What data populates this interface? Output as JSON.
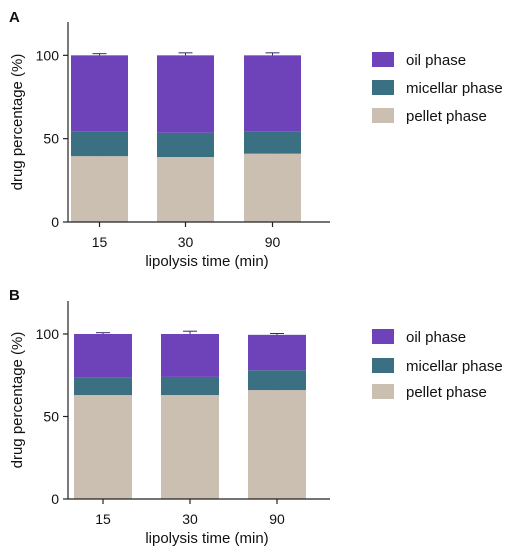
{
  "chart_data": [
    {
      "panel_label": "A",
      "type": "bar",
      "stacked": true,
      "categories": [
        "15",
        "30",
        "90"
      ],
      "xlabel": "lipolysis time (min)",
      "ylabel": "drug percentage (%)",
      "ylim": [
        0,
        120
      ],
      "yticks": [
        0,
        50,
        100
      ],
      "legend_position": "right",
      "series": [
        {
          "name": "pellet phase",
          "color": "#cbbfb1",
          "values": [
            39.5,
            39.0,
            41.0
          ],
          "error": [
            0.5,
            0.5,
            0.5
          ]
        },
        {
          "name": "micellar phase",
          "color": "#3b6f82",
          "values": [
            15.0,
            14.5,
            13.5
          ]
        },
        {
          "name": "oil phase",
          "color": "#6e42b8",
          "values": [
            45.5,
            46.5,
            45.5
          ],
          "error": [
            1.0,
            1.5,
            1.5
          ]
        }
      ]
    },
    {
      "panel_label": "B",
      "type": "bar",
      "stacked": true,
      "categories": [
        "15",
        "30",
        "90"
      ],
      "xlabel": "lipolysis time (min)",
      "ylabel": "drug percentage (%)",
      "ylim": [
        0,
        120
      ],
      "yticks": [
        0,
        50,
        100
      ],
      "legend_position": "right",
      "series": [
        {
          "name": "pellet phase",
          "color": "#cbbfb1",
          "values": [
            63.0,
            63.0,
            66.0
          ],
          "error": [
            0.8,
            0.8,
            0.8
          ]
        },
        {
          "name": "micellar phase",
          "color": "#3b6f82",
          "values": [
            10.5,
            11.0,
            12.0
          ]
        },
        {
          "name": "oil phase",
          "color": "#6e42b8",
          "values": [
            26.5,
            26.0,
            21.5
          ],
          "error": [
            0.8,
            1.7,
            0.8
          ]
        }
      ]
    }
  ]
}
